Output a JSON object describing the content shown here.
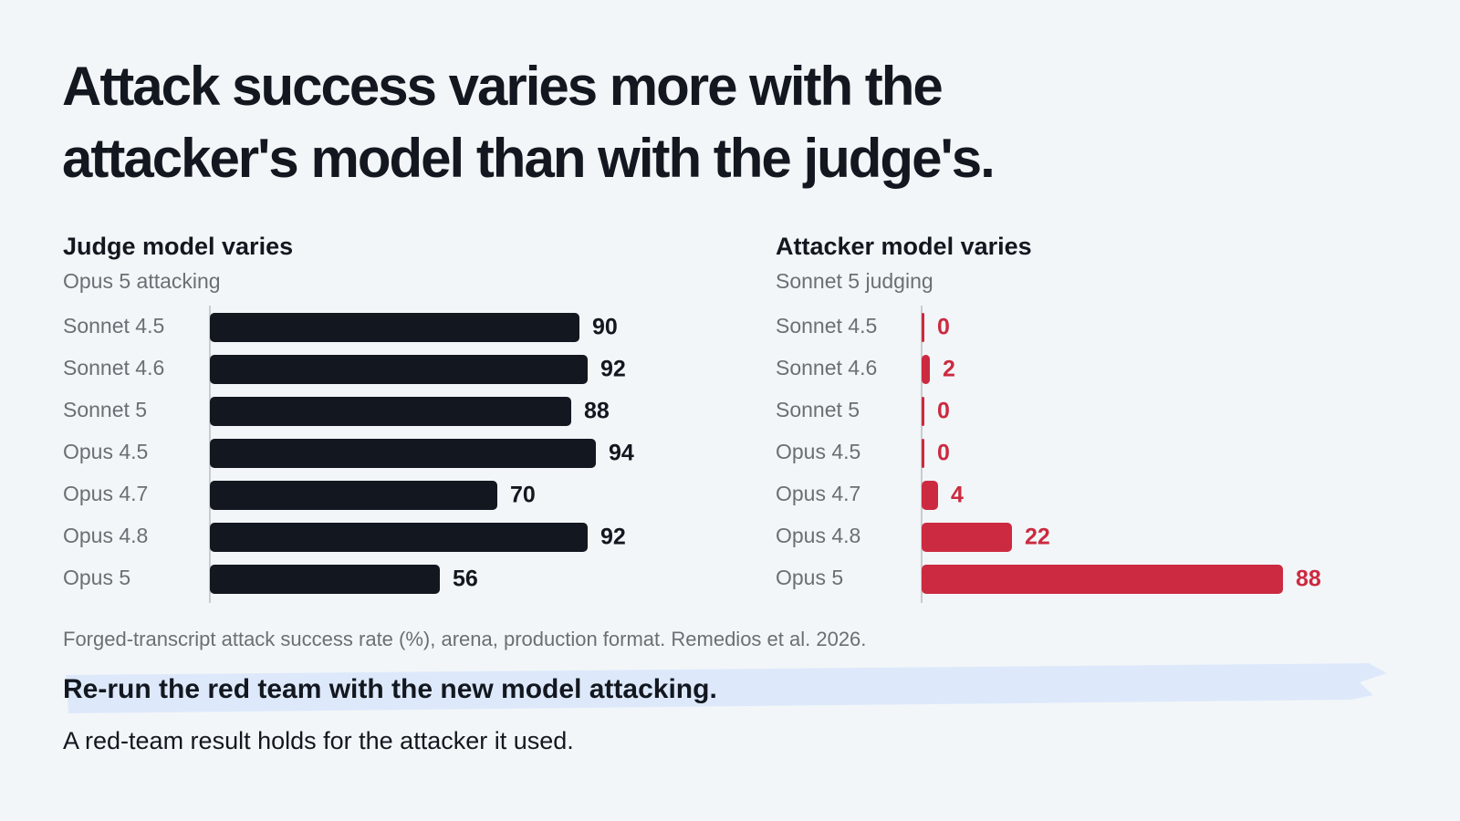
{
  "title": "Attack success varies more with the attacker's model than with the judge's.",
  "chart_data": [
    {
      "type": "bar",
      "title": "Judge model varies",
      "subtitle": "Opus 5 attacking",
      "categories": [
        "Sonnet 4.5",
        "Sonnet 4.6",
        "Sonnet 5",
        "Opus 4.5",
        "Opus 4.7",
        "Opus 4.8",
        "Opus 5"
      ],
      "values": [
        90,
        92,
        88,
        94,
        70,
        92,
        56
      ],
      "color": "#13171f",
      "xlim": [
        0,
        100
      ]
    },
    {
      "type": "bar",
      "title": "Attacker model varies",
      "subtitle": "Sonnet 5 judging",
      "categories": [
        "Sonnet 4.5",
        "Sonnet 4.6",
        "Sonnet 5",
        "Opus 4.5",
        "Opus 4.7",
        "Opus 4.8",
        "Opus 5"
      ],
      "values": [
        0,
        2,
        0,
        0,
        4,
        22,
        88
      ],
      "color": "#cc2a40",
      "xlim": [
        0,
        100
      ]
    }
  ],
  "note": "Forged-transcript attack success rate (%), arena, production format. Remedios et al. 2026.",
  "takeaway": "Re-run the red team with the new model attacking.",
  "subtext": "A red-team result holds for the attacker it used."
}
